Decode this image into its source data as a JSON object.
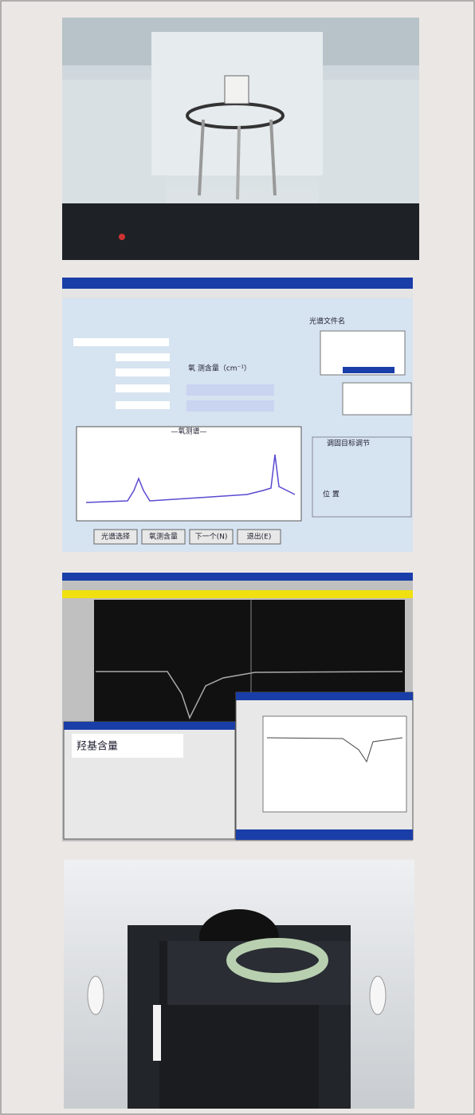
{
  "panel2": {
    "file_label": "光谱文件名",
    "result_title": "氧 测含量（cm⁻¹）",
    "plot_title": "—氧测谱—",
    "adjust_label": "调固目标调节",
    "position_label": "位 置",
    "buttons": [
      "光谱选择",
      "氧测含量",
      "下一个(N)",
      "退出(E)"
    ]
  },
  "panel3": {
    "formula_label": "羟基含量"
  }
}
